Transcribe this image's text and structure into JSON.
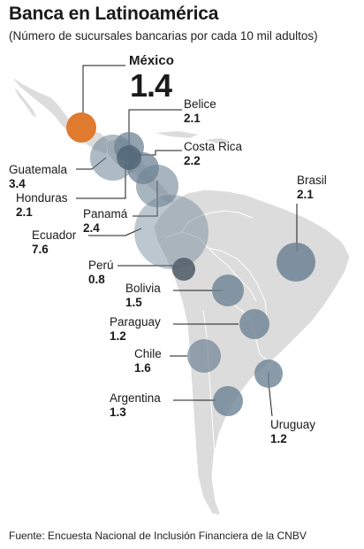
{
  "title": "Banca en Latinoamérica",
  "subtitle": "(Número de sucursales bancarias por cada 10 mil adultos)",
  "source": "Fuente: Encuesta Nacional de Inclusión Financiera de la CNBV",
  "colors": {
    "land": "#dcdcdc",
    "border": "#ffffff",
    "bubble": "#6d8394",
    "highlight": "#e07a2e"
  },
  "countries": {
    "mexico": {
      "name": "México",
      "value": "1.4"
    },
    "belice": {
      "name": "Belice",
      "value": "2.1"
    },
    "costa_rica": {
      "name": "Costa Rica",
      "value": "2.2"
    },
    "guatemala": {
      "name": "Guatemala",
      "value": "3.4"
    },
    "honduras": {
      "name": "Honduras",
      "value": "2.1"
    },
    "panama": {
      "name": "Panamá",
      "value": "2.4"
    },
    "ecuador": {
      "name": "Ecuador",
      "value": "7.6"
    },
    "brasil": {
      "name": "Brasil",
      "value": "2.1"
    },
    "peru": {
      "name": "Perú",
      "value": "0.8"
    },
    "bolivia": {
      "name": "Bolivia",
      "value": "1.5"
    },
    "paraguay": {
      "name": "Paraguay",
      "value": "1.2"
    },
    "chile": {
      "name": "Chile",
      "value": "1.6"
    },
    "argentina": {
      "name": "Argentina",
      "value": "1.3"
    },
    "uruguay": {
      "name": "Uruguay",
      "value": "1.2"
    }
  }
}
